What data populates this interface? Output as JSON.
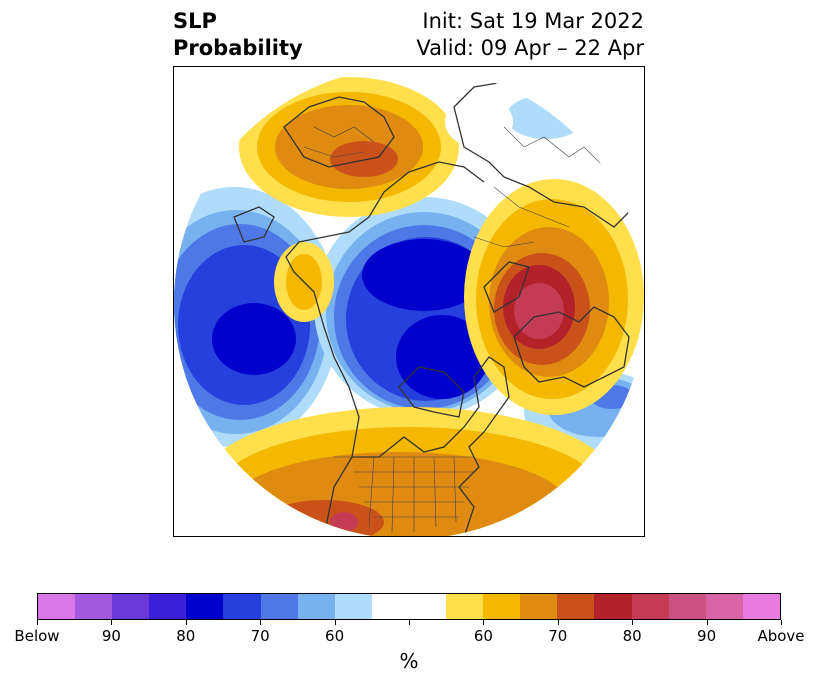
{
  "title": {
    "left_line1": "SLP",
    "left_line2": "Probability",
    "right_line1": "Init: Sat 19 Mar 2022",
    "right_line2": "Valid: 09 Apr – 22 Apr"
  },
  "colorbar": {
    "colors": [
      "#d977e8",
      "#a459e0",
      "#6a3ad9",
      "#3a1fd6",
      "#0000cc",
      "#2540dc",
      "#4e78e6",
      "#78b1f0",
      "#aedcfa",
      "#ffffff",
      "#ffffff",
      "#ffe04c",
      "#f4b800",
      "#df8a10",
      "#c9521a",
      "#b3222a",
      "#c43c54",
      "#cc5282",
      "#d964a8",
      "#e87ae0"
    ],
    "tick_labels": [
      "Below",
      "90",
      "80",
      "70",
      "60",
      "",
      "60",
      "70",
      "80",
      "90",
      "Above"
    ],
    "unit": "%"
  }
}
